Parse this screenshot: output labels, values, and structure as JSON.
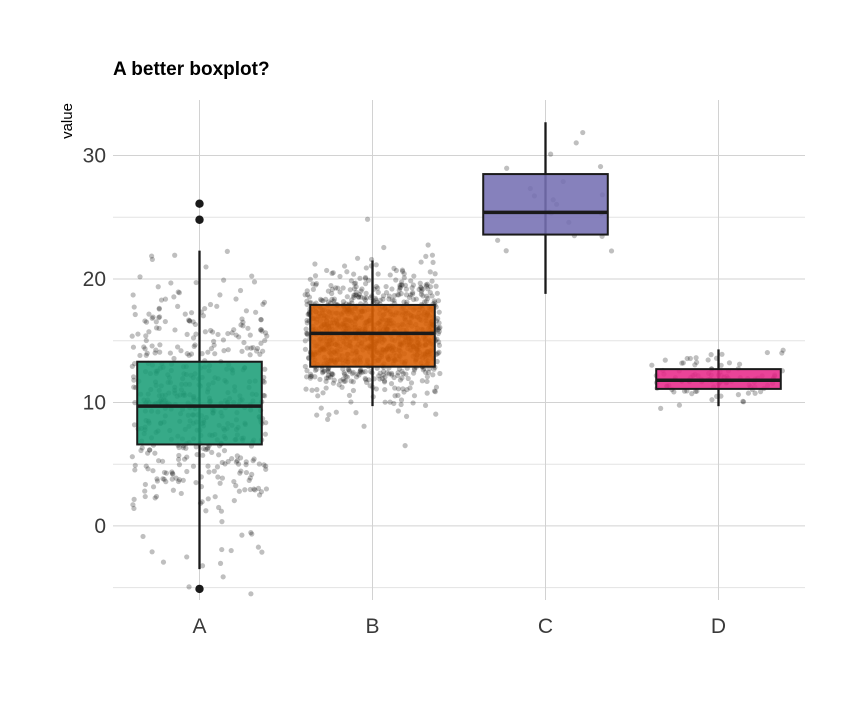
{
  "chart_data": {
    "type": "boxplot",
    "title": "A better boxplot?",
    "xlabel": "",
    "ylabel": "value",
    "ylim": [
      -6,
      34.5
    ],
    "yticks": [
      0,
      10,
      20,
      30
    ],
    "grid": true,
    "legend": "none",
    "point_color": "#000000",
    "point_opacity": 0.25,
    "categories": [
      "A",
      "B",
      "C",
      "D"
    ],
    "groups": [
      {
        "name": "A",
        "color": "#1B9E77",
        "n": 500,
        "jitter_mean": 10,
        "jitter_sd": 5,
        "q1": 6.6,
        "median": 9.7,
        "q3": 13.3,
        "whisker_low": -3.5,
        "whisker_high": 22.3,
        "outliers": [
          26.1,
          24.8,
          -5.1
        ]
      },
      {
        "name": "B",
        "color": "#D95F02",
        "n": 1000,
        "jitter_mean": 15.5,
        "jitter_sd": 2.4,
        "q1": 12.9,
        "median": 15.6,
        "q3": 17.9,
        "whisker_low": 9.7,
        "whisker_high": 21.5,
        "outliers": []
      },
      {
        "name": "C",
        "color": "#7570B3",
        "n": 20,
        "jitter_mean": 25.5,
        "jitter_sd": 3.5,
        "q1": 23.6,
        "median": 25.4,
        "q3": 28.5,
        "whisker_low": 18.8,
        "whisker_high": 32.7,
        "outliers": []
      },
      {
        "name": "D",
        "color": "#E7298A",
        "n": 100,
        "jitter_mean": 12,
        "jitter_sd": 1,
        "q1": 11.1,
        "median": 11.8,
        "q3": 12.7,
        "whisker_low": 9.7,
        "whisker_high": 14.3,
        "outliers": []
      }
    ]
  }
}
